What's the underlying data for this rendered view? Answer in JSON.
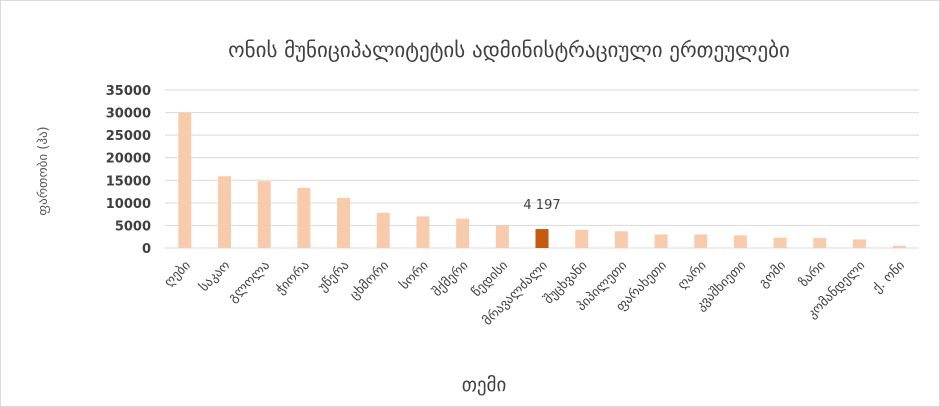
{
  "chart_data": {
    "type": "bar",
    "title": "ონის მუნიციპალიტეტის ადმინისტრაციული ერთეულები",
    "xlabel": "თემი",
    "ylabel": "ფართობი (ჰა)",
    "ylim": [
      0,
      35000
    ],
    "yticks": [
      "0",
      "5000",
      "10000",
      "15000",
      "20000",
      "25000",
      "30000",
      "35000"
    ],
    "grid": true,
    "categories": [
      "ღები",
      "საკაო",
      "გლოლა",
      "ჭიორა",
      "უწერა",
      "ცხმორი",
      "სორი",
      "შქმერი",
      "წედისი",
      "მრავალძალი",
      "შუცხვანი",
      "პიპილეთი",
      "ფარახეთი",
      "ღარი",
      "კვაშხიეთი",
      "გომი",
      "ზარი",
      "კომანდელი",
      "ქ. ონი"
    ],
    "values": [
      30000,
      15900,
      14800,
      13300,
      11100,
      7800,
      7000,
      6500,
      5000,
      4197,
      4000,
      3700,
      3000,
      3000,
      2800,
      2300,
      2200,
      1900,
      500
    ],
    "highlight_index": 9,
    "highlight_label": "4 197",
    "colors": {
      "bar": "#f8cbad",
      "highlight": "#c55a11",
      "grid": "#d9d9d9"
    }
  }
}
